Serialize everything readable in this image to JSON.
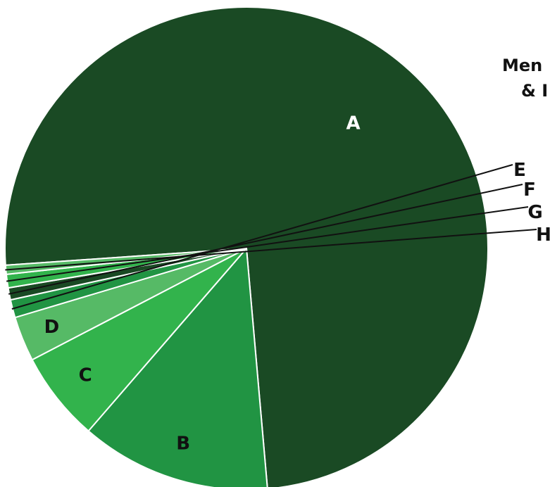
{
  "chart_data": {
    "type": "pie",
    "title_lines": [
      "Men",
      "& I"
    ],
    "slices": [
      {
        "label": "A",
        "value": 74.5,
        "color": "#1a4a24",
        "label_color": "#ffffff",
        "label_placement": "inside"
      },
      {
        "label": "B",
        "value": 12.7,
        "color": "#219443",
        "label_color": "#111111",
        "label_placement": "inside"
      },
      {
        "label": "C",
        "value": 6.0,
        "color": "#32b34c",
        "label_color": "#111111",
        "label_placement": "inside"
      },
      {
        "label": "D",
        "value": 3.0,
        "color": "#56ba66",
        "label_color": "#111111",
        "label_placement": "inside"
      },
      {
        "label": "E",
        "value": 1.2,
        "color": "#219443",
        "label_color": "#111111",
        "label_placement": "outside"
      },
      {
        "label": "F",
        "value": 0.8,
        "color": "#1a4a24",
        "label_color": "#111111",
        "label_placement": "outside"
      },
      {
        "label": "G",
        "value": 0.9,
        "color": "#32b34c",
        "label_color": "#111111",
        "label_placement": "outside"
      },
      {
        "label": "H",
        "value": 0.6,
        "color": "#56ba66",
        "label_color": "#111111",
        "label_placement": "outside"
      }
    ]
  }
}
